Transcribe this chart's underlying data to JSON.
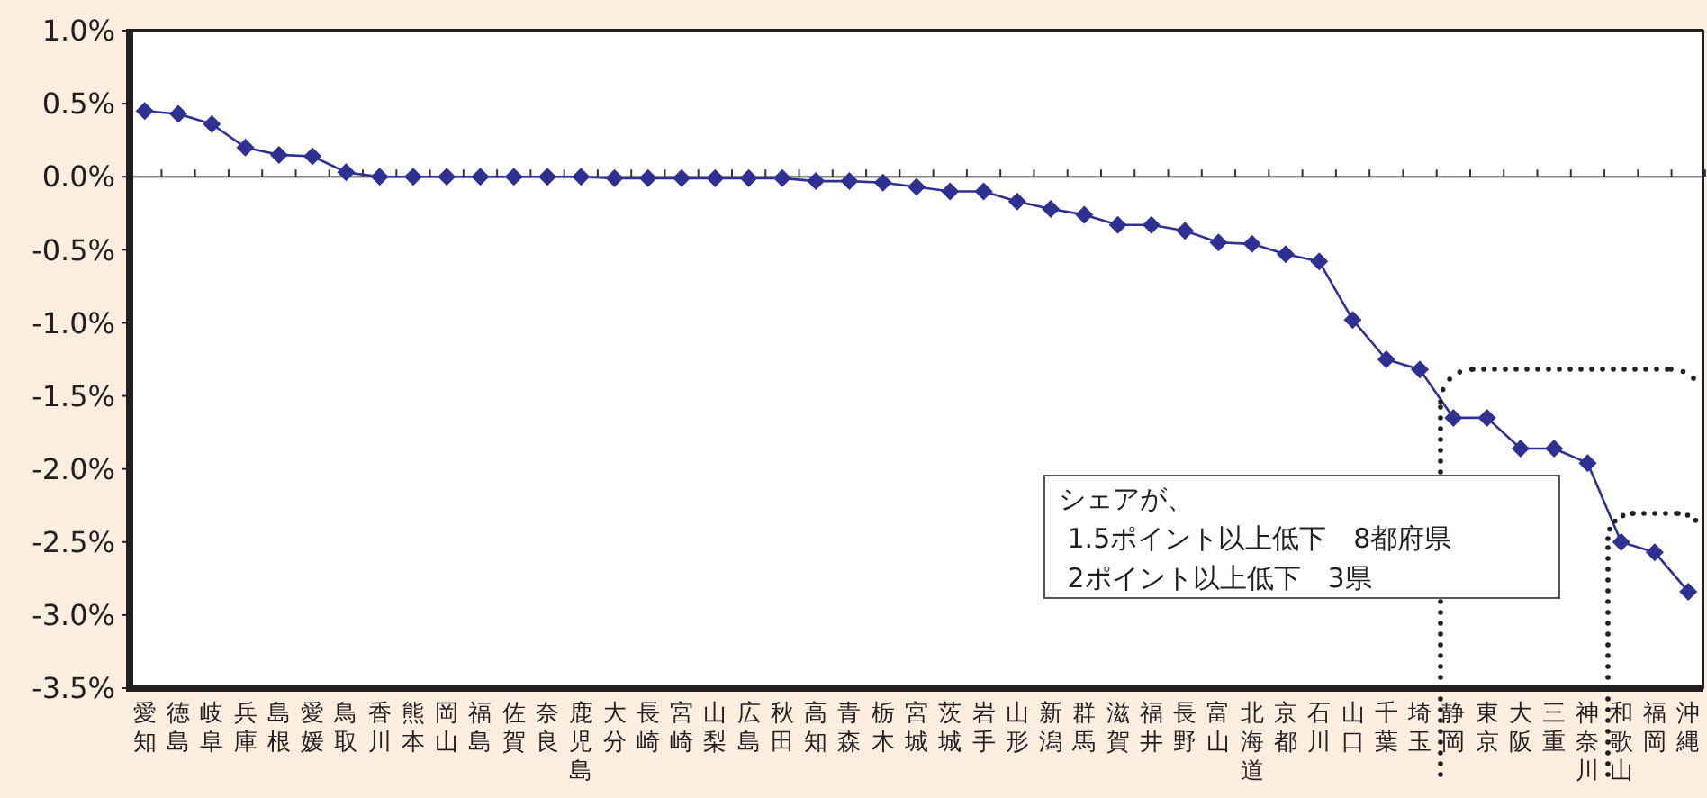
{
  "chart_data": {
    "type": "line",
    "categories": [
      "愛知",
      "徳島",
      "岐阜",
      "兵庫",
      "島根",
      "愛媛",
      "鳥取",
      "香川",
      "熊本",
      "岡山",
      "福島",
      "佐賀",
      "奈良",
      "鹿児島",
      "大分",
      "長崎",
      "宮崎",
      "山梨",
      "広島",
      "秋田",
      "高知",
      "青森",
      "栃木",
      "宮城",
      "茨城",
      "岩手",
      "山形",
      "新潟",
      "群馬",
      "滋賀",
      "福井",
      "長野",
      "富山",
      "北海道",
      "京都",
      "石川",
      "山口",
      "千葉",
      "埼玉",
      "静岡",
      "東京",
      "大阪",
      "三重",
      "神奈川",
      "和歌山",
      "福岡",
      "沖縄"
    ],
    "series": [
      {
        "color": "#2e3192",
        "values": [
          0.45,
          0.43,
          0.36,
          0.2,
          0.15,
          0.14,
          0.03,
          0,
          0,
          0,
          0,
          0,
          0,
          0,
          -0.01,
          -0.01,
          -0.01,
          -0.01,
          -0.01,
          -0.01,
          -0.03,
          -0.03,
          -0.04,
          -0.07,
          -0.1,
          -0.1,
          -0.17,
          -0.22,
          -0.26,
          -0.33,
          -0.33,
          -0.37,
          -0.45,
          -0.46,
          -0.53,
          -0.58,
          -0.98,
          -1.25,
          -1.32,
          -1.65,
          -1.65,
          -1.86,
          -1.86,
          -1.96,
          -2.5,
          -2.57,
          -2.84
        ]
      }
    ],
    "ylim": [
      -3.5,
      1
    ],
    "yticks": [
      {
        "value": 1,
        "label": "1.0%"
      },
      {
        "value": 0.5,
        "label": "0.5%"
      },
      {
        "value": 0,
        "label": "0.0%"
      },
      {
        "value": -0.5,
        "label": "-0.5%"
      },
      {
        "value": -1,
        "label": "-1.0%"
      },
      {
        "value": -1.5,
        "label": "-1.5%"
      },
      {
        "value": -2,
        "label": "-2.0%"
      },
      {
        "value": -2.5,
        "label": "-2.5%"
      },
      {
        "value": -3,
        "label": "-3.0%"
      },
      {
        "value": -3.5,
        "label": "-3.5%"
      }
    ],
    "marker": "diamond",
    "line_style": "solid",
    "annotations": [
      "シェアが、\n 1.5ポイント以上低下　8都府県\n 2ポイント以上低下　3県"
    ]
  }
}
